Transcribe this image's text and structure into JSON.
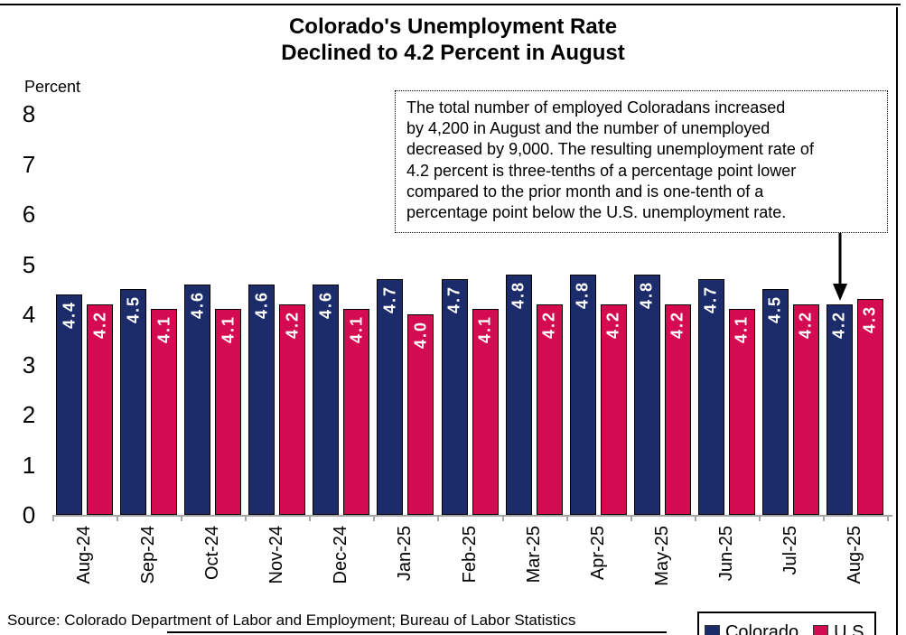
{
  "title": {
    "line1": "Colorado's Unemployment Rate",
    "line2": "Declined to 4.2 Percent in August"
  },
  "y_axis_unit_label": "Percent",
  "annotation": {
    "text": "The total number of employed Coloradans increased\nby 4,200 in August and the number of unemployed\ndecreased by 9,000. The resulting unemployment rate of\n4.2 percent is three-tenths of a percentage point lower\ncompared to the prior month and is one-tenth of a\npercentage point below the U.S. unemployment rate.",
    "arrow_target": {
      "category": "Aug-25",
      "series": "Colorado"
    }
  },
  "source_text": "Source: Colorado Department of Labor and Employment; Bureau of Labor Statistics",
  "legend": {
    "position": "bottom-right",
    "items": [
      {
        "label": "Colorado",
        "color": "#1c2c6b"
      },
      {
        "label": "U.S.",
        "color": "#d50b51"
      }
    ]
  },
  "colors": {
    "colorado_bar": "#1c2c6b",
    "us_bar": "#d50b51",
    "bar_value_text": "#ffffff",
    "axis": "#a6a6a6",
    "text": "#000000"
  },
  "chart_data": {
    "type": "bar",
    "title": "Colorado's Unemployment Rate Declined to 4.2 Percent in August",
    "xlabel": "",
    "ylabel": "Percent",
    "ylim": [
      0,
      8
    ],
    "yticks": [
      0,
      1,
      2,
      3,
      4,
      5,
      6,
      7,
      8
    ],
    "grid": false,
    "legend_position": "bottom-right",
    "bar_value_labels": true,
    "categories": [
      "Aug-24",
      "Sep-24",
      "Oct-24",
      "Nov-24",
      "Dec-24",
      "Jan-25",
      "Feb-25",
      "Mar-25",
      "Apr-25",
      "May-25",
      "Jun-25",
      "Jul-25",
      "Aug-25"
    ],
    "series": [
      {
        "name": "Colorado",
        "color": "#1c2c6b",
        "values": [
          4.4,
          4.5,
          4.6,
          4.6,
          4.6,
          4.7,
          4.7,
          4.8,
          4.8,
          4.8,
          4.7,
          4.5,
          4.2
        ]
      },
      {
        "name": "U.S.",
        "color": "#d50b51",
        "values": [
          4.2,
          4.1,
          4.1,
          4.2,
          4.1,
          4.0,
          4.1,
          4.2,
          4.2,
          4.2,
          4.1,
          4.2,
          4.3
        ]
      }
    ]
  }
}
